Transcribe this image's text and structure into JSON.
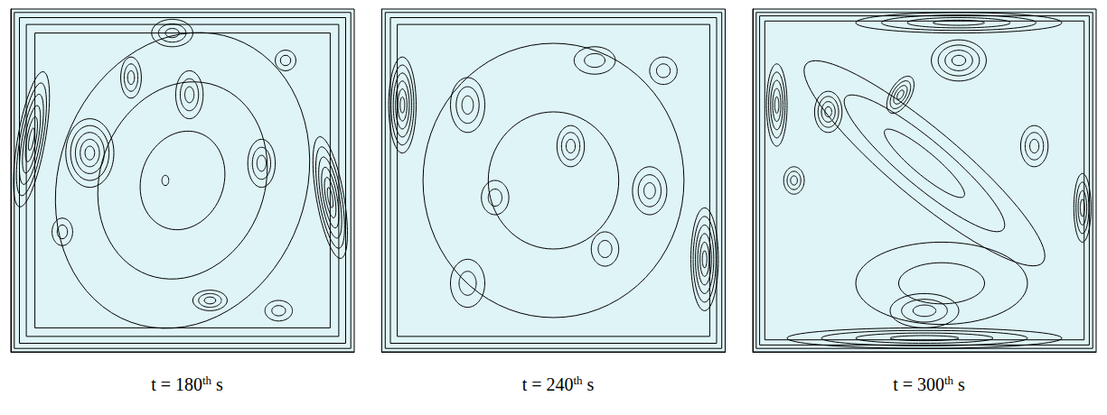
{
  "chart_data": [
    {
      "type": "contour",
      "title": "t = 180th s",
      "xlim": [
        0,
        1
      ],
      "ylim": [
        0,
        1
      ],
      "tick_labels": false,
      "color": "#000000",
      "wall_levels": [
        0.01,
        0.025,
        0.045,
        0.07
      ],
      "vortices": [
        {
          "x": 0.5,
          "y": 0.5,
          "rx": 0.36,
          "ry": 0.44,
          "angle": -20,
          "levels": 3
        },
        {
          "x": 0.06,
          "y": 0.62,
          "rx": 0.04,
          "ry": 0.2,
          "angle": -10,
          "levels": 6
        },
        {
          "x": 0.23,
          "y": 0.58,
          "rx": 0.07,
          "ry": 0.1,
          "angle": 0,
          "levels": 5
        },
        {
          "x": 0.47,
          "y": 0.93,
          "rx": 0.06,
          "ry": 0.04,
          "angle": 0,
          "levels": 3
        },
        {
          "x": 0.35,
          "y": 0.8,
          "rx": 0.03,
          "ry": 0.06,
          "angle": 0,
          "levels": 3
        },
        {
          "x": 0.52,
          "y": 0.75,
          "rx": 0.04,
          "ry": 0.07,
          "angle": 0,
          "levels": 3
        },
        {
          "x": 0.93,
          "y": 0.45,
          "rx": 0.04,
          "ry": 0.18,
          "angle": 10,
          "levels": 6
        },
        {
          "x": 0.8,
          "y": 0.85,
          "rx": 0.03,
          "ry": 0.03,
          "angle": 0,
          "levels": 2
        },
        {
          "x": 0.73,
          "y": 0.55,
          "rx": 0.04,
          "ry": 0.07,
          "angle": 0,
          "levels": 3
        },
        {
          "x": 0.58,
          "y": 0.15,
          "rx": 0.05,
          "ry": 0.03,
          "angle": 0,
          "levels": 3
        },
        {
          "x": 0.15,
          "y": 0.35,
          "rx": 0.03,
          "ry": 0.04,
          "angle": 0,
          "levels": 2
        },
        {
          "x": 0.78,
          "y": 0.12,
          "rx": 0.04,
          "ry": 0.03,
          "angle": 0,
          "levels": 2
        },
        {
          "x": 0.45,
          "y": 0.5,
          "rx": 0.01,
          "ry": 0.015,
          "angle": 0,
          "levels": 1
        }
      ]
    },
    {
      "type": "contour",
      "title": "t = 240th s",
      "xlim": [
        0,
        1
      ],
      "ylim": [
        0,
        1
      ],
      "tick_labels": false,
      "color": "#000000",
      "wall_levels": [
        0.01,
        0.025,
        0.045
      ],
      "vortices": [
        {
          "x": 0.5,
          "y": 0.5,
          "rx": 0.38,
          "ry": 0.4,
          "angle": 0,
          "levels": 2
        },
        {
          "x": 0.06,
          "y": 0.72,
          "rx": 0.04,
          "ry": 0.14,
          "angle": 0,
          "levels": 6
        },
        {
          "x": 0.94,
          "y": 0.27,
          "rx": 0.04,
          "ry": 0.15,
          "angle": 0,
          "levels": 6
        },
        {
          "x": 0.25,
          "y": 0.72,
          "rx": 0.05,
          "ry": 0.08,
          "angle": 0,
          "levels": 3
        },
        {
          "x": 0.33,
          "y": 0.45,
          "rx": 0.04,
          "ry": 0.05,
          "angle": 0,
          "levels": 2
        },
        {
          "x": 0.55,
          "y": 0.6,
          "rx": 0.04,
          "ry": 0.06,
          "angle": 0,
          "levels": 3
        },
        {
          "x": 0.78,
          "y": 0.47,
          "rx": 0.05,
          "ry": 0.07,
          "angle": 0,
          "levels": 3
        },
        {
          "x": 0.62,
          "y": 0.85,
          "rx": 0.06,
          "ry": 0.04,
          "angle": 0,
          "levels": 2
        },
        {
          "x": 0.82,
          "y": 0.82,
          "rx": 0.04,
          "ry": 0.04,
          "angle": 0,
          "levels": 2
        },
        {
          "x": 0.25,
          "y": 0.2,
          "rx": 0.05,
          "ry": 0.07,
          "angle": 0,
          "levels": 2
        },
        {
          "x": 0.65,
          "y": 0.3,
          "rx": 0.04,
          "ry": 0.05,
          "angle": 0,
          "levels": 2
        }
      ]
    },
    {
      "type": "contour",
      "title": "t = 300th s",
      "xlim": [
        0,
        1
      ],
      "ylim": [
        0,
        1
      ],
      "tick_labels": false,
      "color": "#000000",
      "wall_levels": [
        0.01,
        0.02,
        0.035
      ],
      "vortices": [
        {
          "x": 0.5,
          "y": 0.55,
          "rx": 0.45,
          "ry": 0.1,
          "angle": -40,
          "levels": 3
        },
        {
          "x": 0.6,
          "y": 0.96,
          "rx": 0.3,
          "ry": 0.03,
          "angle": 0,
          "levels": 4
        },
        {
          "x": 0.5,
          "y": 0.04,
          "rx": 0.4,
          "ry": 0.03,
          "angle": 0,
          "levels": 4
        },
        {
          "x": 0.07,
          "y": 0.72,
          "rx": 0.03,
          "ry": 0.12,
          "angle": 0,
          "levels": 5
        },
        {
          "x": 0.96,
          "y": 0.42,
          "rx": 0.025,
          "ry": 0.1,
          "angle": 0,
          "levels": 4
        },
        {
          "x": 0.22,
          "y": 0.7,
          "rx": 0.04,
          "ry": 0.06,
          "angle": 0,
          "levels": 4
        },
        {
          "x": 0.12,
          "y": 0.5,
          "rx": 0.03,
          "ry": 0.04,
          "angle": 0,
          "levels": 3
        },
        {
          "x": 0.43,
          "y": 0.75,
          "rx": 0.03,
          "ry": 0.06,
          "angle": -30,
          "levels": 4
        },
        {
          "x": 0.6,
          "y": 0.85,
          "rx": 0.08,
          "ry": 0.06,
          "angle": 0,
          "levels": 4
        },
        {
          "x": 0.82,
          "y": 0.6,
          "rx": 0.04,
          "ry": 0.06,
          "angle": 0,
          "levels": 3
        },
        {
          "x": 0.5,
          "y": 0.12,
          "rx": 0.1,
          "ry": 0.05,
          "angle": 0,
          "levels": 3
        },
        {
          "x": 0.55,
          "y": 0.2,
          "rx": 0.25,
          "ry": 0.12,
          "angle": 0,
          "levels": 2
        }
      ]
    }
  ]
}
